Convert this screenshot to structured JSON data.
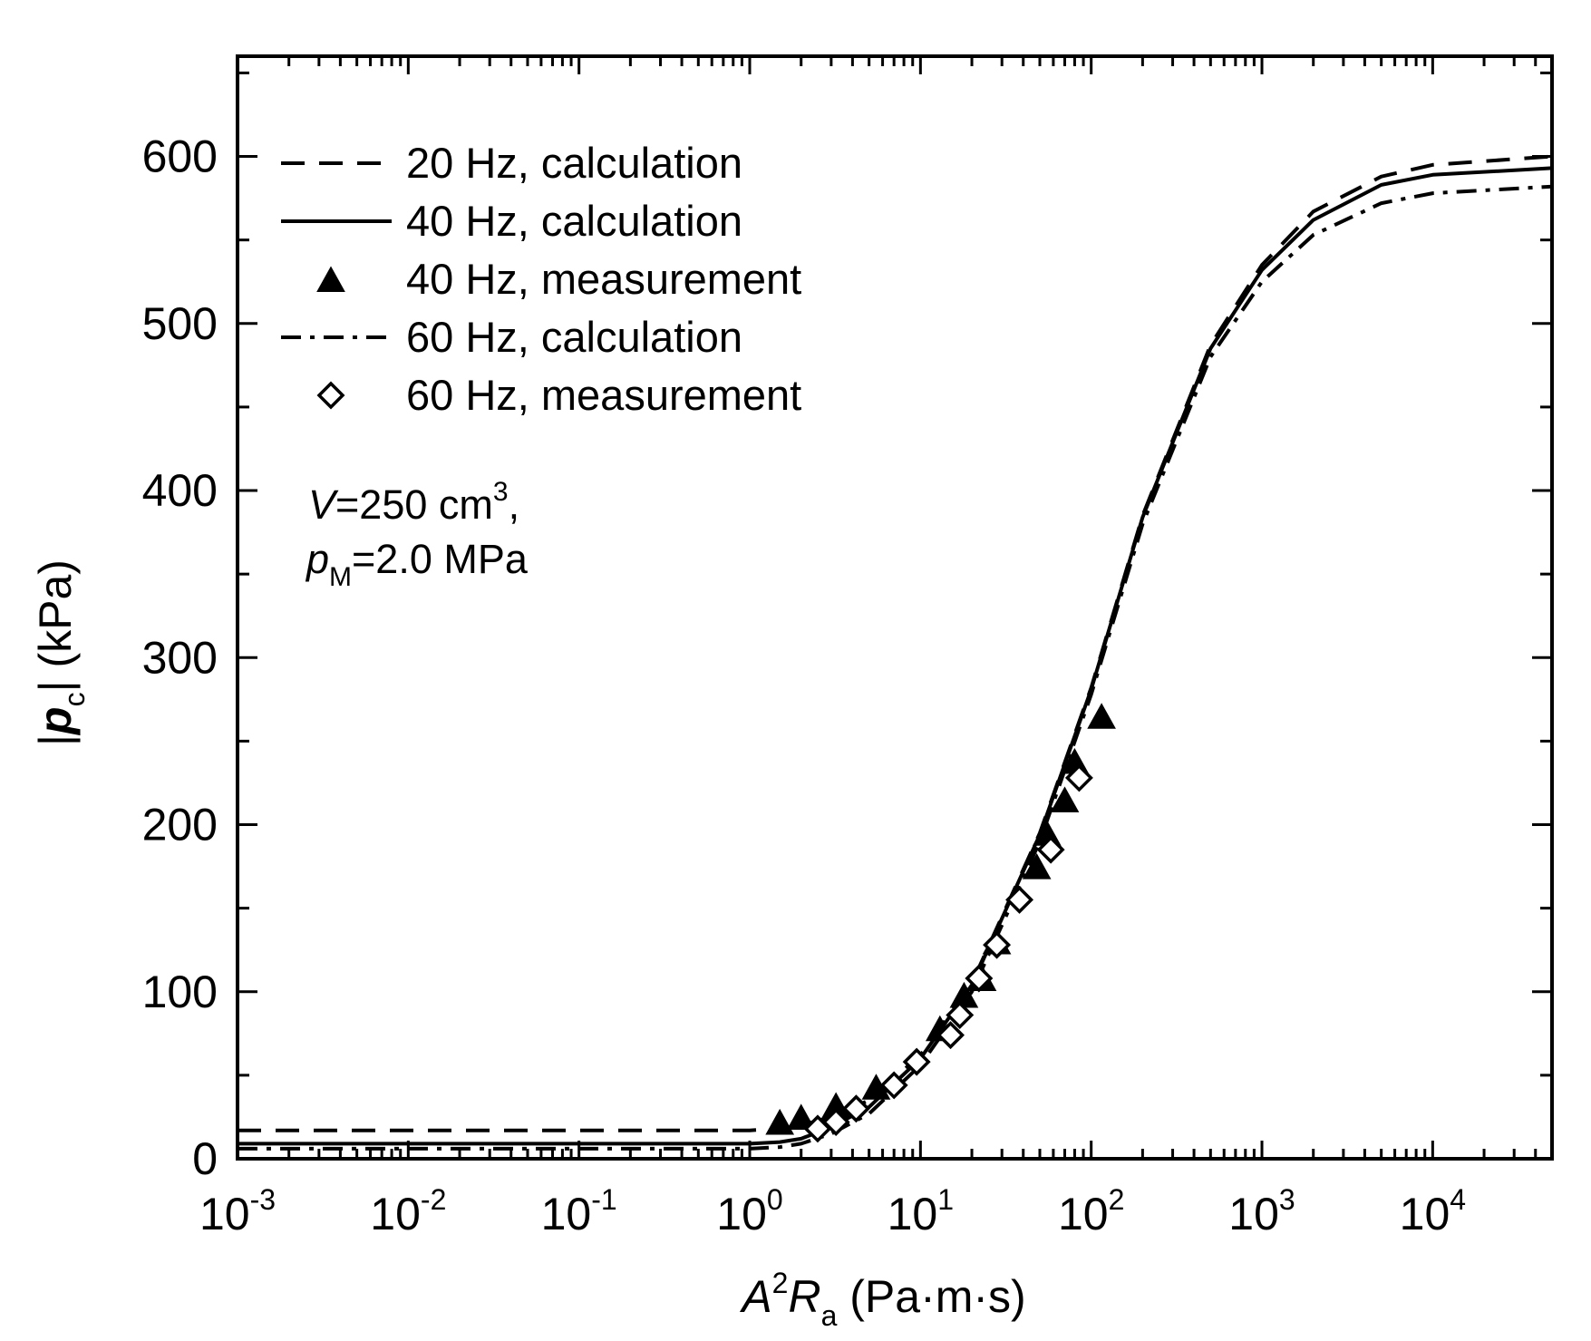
{
  "chart_data": {
    "type": "line",
    "title": "",
    "xlabel": {
      "parts": [
        {
          "text": "A",
          "style": "italic"
        },
        {
          "text": "2",
          "style": "sup"
        },
        {
          "text": "R",
          "style": "italic"
        },
        {
          "text": "a",
          "style": "sub"
        },
        {
          "text": " (Pa·m·s)",
          "style": "normal"
        }
      ]
    },
    "ylabel": {
      "parts": [
        {
          "text": "|",
          "style": "normal"
        },
        {
          "text": "p",
          "style": "bold-italic"
        },
        {
          "text": "c",
          "style": "sub"
        },
        {
          "text": "| (kPa)",
          "style": "normal"
        }
      ]
    },
    "xscale": "log",
    "xlim": [
      0.001,
      50000
    ],
    "ylim": [
      0,
      660
    ],
    "xticks": [
      {
        "value": 0.001,
        "base": "10",
        "exp": "-3"
      },
      {
        "value": 0.01,
        "base": "10",
        "exp": "-2"
      },
      {
        "value": 0.1,
        "base": "10",
        "exp": "-1"
      },
      {
        "value": 1,
        "base": "10",
        "exp": "0"
      },
      {
        "value": 10,
        "base": "10",
        "exp": "1"
      },
      {
        "value": 100,
        "base": "10",
        "exp": "2"
      },
      {
        "value": 1000,
        "base": "10",
        "exp": "3"
      },
      {
        "value": 10000,
        "base": "10",
        "exp": "4"
      }
    ],
    "yticks": [
      {
        "value": 0,
        "label": "0"
      },
      {
        "value": 100,
        "label": "100"
      },
      {
        "value": 200,
        "label": "200"
      },
      {
        "value": 300,
        "label": "300"
      },
      {
        "value": 400,
        "label": "400"
      },
      {
        "value": 500,
        "label": "500"
      },
      {
        "value": 600,
        "label": "600"
      }
    ],
    "legend_position": "top-left",
    "series": [
      {
        "name": "20 Hz, calculation",
        "kind": "line",
        "dash": "dashed",
        "x": [
          0.001,
          0.1,
          1,
          1.5,
          2,
          3,
          5,
          10,
          20,
          50,
          100,
          200,
          500,
          1000,
          2000,
          5000,
          10000,
          50000
        ],
        "y": [
          17,
          17,
          17,
          18,
          20,
          25,
          35,
          62,
          105,
          195,
          282,
          385,
          487,
          535,
          567,
          588,
          595,
          600
        ]
      },
      {
        "name": "40 Hz, calculation",
        "kind": "line",
        "dash": "solid",
        "x": [
          0.001,
          0.1,
          1,
          1.5,
          2,
          3,
          5,
          10,
          20,
          50,
          100,
          200,
          500,
          1000,
          2000,
          5000,
          10000,
          50000
        ],
        "y": [
          9,
          9,
          9,
          10,
          12,
          19,
          31,
          60,
          104,
          194,
          281,
          384,
          485,
          532,
          562,
          583,
          589,
          593
        ]
      },
      {
        "name": "40 Hz, measurement",
        "kind": "marker",
        "marker": "filled-triangle",
        "x": [
          1.5,
          2,
          3.2,
          5.5,
          13,
          18,
          23,
          28,
          48,
          55,
          70,
          80,
          115
        ],
        "y": [
          22,
          25,
          32,
          43,
          78,
          98,
          108,
          130,
          175,
          195,
          215,
          238,
          265
        ]
      },
      {
        "name": "60 Hz, calculation",
        "kind": "line",
        "dash": "dash-dot",
        "x": [
          0.001,
          0.1,
          1,
          1.5,
          2,
          3,
          5,
          10,
          20,
          50,
          100,
          200,
          500,
          1000,
          2000,
          5000,
          10000,
          50000
        ],
        "y": [
          6,
          6,
          6,
          7,
          9,
          15,
          27,
          56,
          100,
          190,
          278,
          380,
          480,
          525,
          553,
          572,
          578,
          582
        ]
      },
      {
        "name": "60 Hz, measurement",
        "kind": "marker",
        "marker": "open-diamond",
        "x": [
          2.5,
          3.2,
          4.2,
          7,
          9.5,
          15,
          17,
          22,
          28,
          38,
          58,
          85
        ],
        "y": [
          18,
          22,
          30,
          44,
          58,
          74,
          86,
          108,
          128,
          155,
          185,
          228
        ]
      }
    ],
    "annotations": {
      "volume": {
        "symbol": "V",
        "text": "=250 cm",
        "sup": "3",
        "trail": ","
      },
      "pressure": {
        "symbol": "p",
        "sub": "M",
        "text": "=2.0 MPa"
      }
    }
  }
}
